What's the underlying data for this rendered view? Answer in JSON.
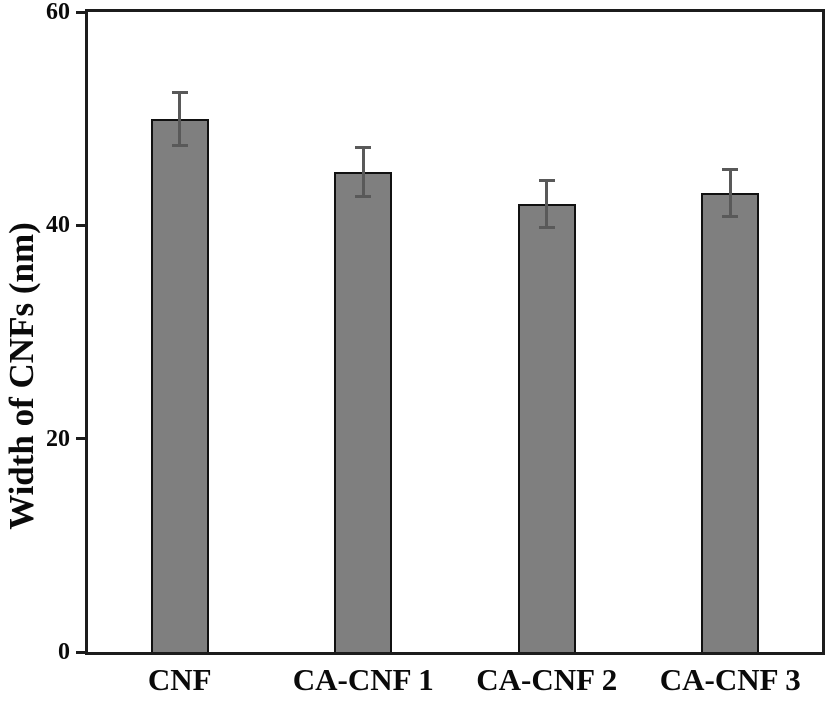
{
  "chart_data": {
    "type": "bar",
    "categories": [
      "CNF",
      "CA-CNF 1",
      "CA-CNF 2",
      "CA-CNF 3"
    ],
    "values": [
      50,
      45,
      42,
      43
    ],
    "errors": [
      2.5,
      2.3,
      2.2,
      2.2
    ],
    "title": "",
    "xlabel": "",
    "ylabel": "Width of CNFs (nm)",
    "ylim": [
      0,
      60
    ],
    "yticks": [
      0,
      20,
      40,
      60
    ],
    "grid": false,
    "legend": null,
    "colors": {
      "bar_fill": "#7f7f7f",
      "bar_border": "#111111",
      "error_bar": "#595959",
      "axis": "#1c1c1c",
      "text": "#0a0a0a"
    }
  }
}
